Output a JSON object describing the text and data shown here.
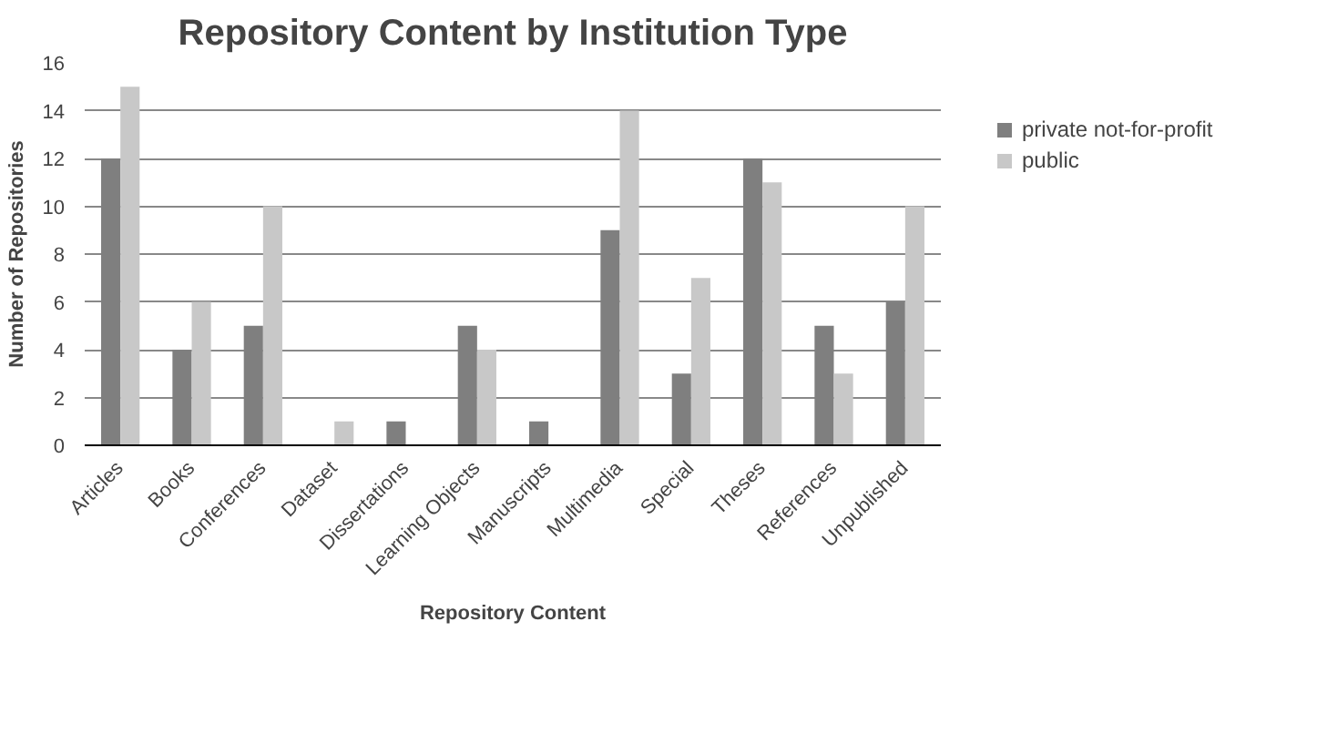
{
  "chart_data": {
    "type": "bar",
    "title": "Repository Content by Institution Type",
    "xlabel": "Repository Content",
    "ylabel": "Number of Repositories",
    "categories": [
      "Articles",
      "Books",
      "Conferences",
      "Dataset",
      "Dissertations",
      "Learning Objects",
      "Manuscripts",
      "Multimedia",
      "Special",
      "Theses",
      "References",
      "Unpublished"
    ],
    "series": [
      {
        "name": "private not-for-profit",
        "color": "#7f7f7f",
        "values": [
          12,
          4,
          5,
          0,
          1,
          5,
          1,
          9,
          3,
          12,
          5,
          6
        ]
      },
      {
        "name": "public",
        "color": "#c8c8c8",
        "values": [
          15,
          6,
          10,
          1,
          0,
          4,
          0,
          14,
          7,
          11,
          3,
          10
        ]
      }
    ],
    "ylim": [
      0,
      16
    ],
    "yticks": [
      0,
      2,
      4,
      6,
      8,
      10,
      12,
      14,
      16
    ],
    "grid": "y",
    "legend": "right"
  }
}
